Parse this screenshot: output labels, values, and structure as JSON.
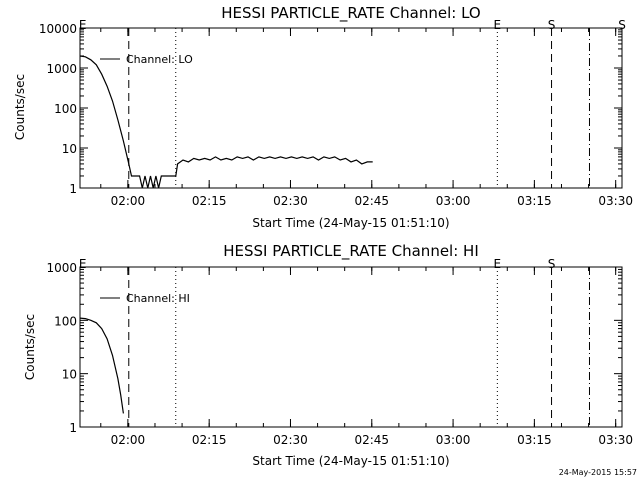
{
  "chart_data": [
    {
      "type": "line",
      "title": "HESSI PARTICLE_RATE Channel: LO",
      "xlabel": "Start Time (24-May-15 01:51:10)",
      "ylabel": "Counts/sec",
      "y_scale": "log",
      "ylim": [
        1,
        10000
      ],
      "xlim": [
        "01:51:10",
        "03:31:10"
      ],
      "x_tick_labels": [
        "02:00",
        "02:15",
        "02:30",
        "02:45",
        "03:00",
        "03:15",
        "03:30"
      ],
      "y_tick_labels": [
        "1",
        "10",
        "100",
        "1000",
        "10000"
      ],
      "legend": {
        "placement": "top-left",
        "entries": [
          "Channel: LO"
        ]
      },
      "grid": false,
      "event_markers": [
        {
          "time": "01:51:40",
          "label": "E",
          "style": "none"
        },
        {
          "time": "02:00:10",
          "label": "",
          "style": "dashed"
        },
        {
          "time": "02:08:50",
          "label": "",
          "style": "dotted"
        },
        {
          "time": "03:08:10",
          "label": "E",
          "style": "dotted"
        },
        {
          "time": "03:18:10",
          "label": "S",
          "style": "dashed"
        },
        {
          "time": "03:25:10",
          "label": "",
          "style": "dash-dot"
        },
        {
          "time": "03:31:10",
          "label": "S",
          "style": "none"
        }
      ],
      "series": [
        {
          "name": "Channel: LO",
          "points": [
            [
              "01:51:10",
              2000
            ],
            [
              "01:52:10",
              1900
            ],
            [
              "01:53:10",
              1600
            ],
            [
              "01:54:10",
              1200
            ],
            [
              "01:55:10",
              700
            ],
            [
              "01:56:10",
              350
            ],
            [
              "01:57:10",
              150
            ],
            [
              "01:58:10",
              50
            ],
            [
              "01:59:10",
              15
            ],
            [
              "02:00:10",
              4
            ],
            [
              "02:00:40",
              2
            ],
            [
              "02:01:10",
              2
            ],
            [
              "02:02:10",
              2
            ],
            [
              "02:02:40",
              1
            ],
            [
              "02:03:10",
              2
            ],
            [
              "02:03:40",
              1
            ],
            [
              "02:04:10",
              2
            ],
            [
              "02:04:40",
              1
            ],
            [
              "02:05:10",
              2
            ],
            [
              "02:05:40",
              1
            ],
            [
              "02:06:10",
              2
            ],
            [
              "02:07:10",
              2
            ],
            [
              "02:08:10",
              2
            ],
            [
              "02:08:50",
              2
            ],
            [
              "02:09:10",
              4
            ],
            [
              "02:10:10",
              5
            ],
            [
              "02:11:10",
              4.5
            ],
            [
              "02:12:10",
              5.5
            ],
            [
              "02:13:10",
              5
            ],
            [
              "02:14:10",
              5.5
            ],
            [
              "02:15:10",
              5
            ],
            [
              "02:16:10",
              6
            ],
            [
              "02:17:10",
              5
            ],
            [
              "02:18:10",
              5.5
            ],
            [
              "02:19:10",
              5
            ],
            [
              "02:20:10",
              6
            ],
            [
              "02:21:10",
              5.5
            ],
            [
              "02:22:10",
              6
            ],
            [
              "02:23:10",
              5
            ],
            [
              "02:24:10",
              6
            ],
            [
              "02:25:10",
              5.5
            ],
            [
              "02:26:10",
              6
            ],
            [
              "02:27:10",
              5.5
            ],
            [
              "02:28:10",
              6
            ],
            [
              "02:29:10",
              5.5
            ],
            [
              "02:30:10",
              6
            ],
            [
              "02:31:10",
              5.5
            ],
            [
              "02:32:10",
              6
            ],
            [
              "02:33:10",
              5.5
            ],
            [
              "02:34:10",
              6
            ],
            [
              "02:35:10",
              5
            ],
            [
              "02:36:10",
              6
            ],
            [
              "02:37:10",
              5.5
            ],
            [
              "02:38:10",
              6
            ],
            [
              "02:39:10",
              5
            ],
            [
              "02:40:10",
              5.5
            ],
            [
              "02:41:10",
              4.5
            ],
            [
              "02:42:10",
              5
            ],
            [
              "02:43:10",
              4
            ],
            [
              "02:44:10",
              4.5
            ],
            [
              "02:45:10",
              4.5
            ]
          ]
        }
      ]
    },
    {
      "type": "line",
      "title": "HESSI PARTICLE_RATE Channel: HI",
      "xlabel": "Start Time (24-May-15 01:51:10)",
      "ylabel": "Counts/sec",
      "y_scale": "log",
      "ylim": [
        1,
        1000
      ],
      "xlim": [
        "01:51:10",
        "03:31:10"
      ],
      "x_tick_labels": [
        "02:00",
        "02:15",
        "02:30",
        "02:45",
        "03:00",
        "03:15",
        "03:30"
      ],
      "y_tick_labels": [
        "1",
        "10",
        "100",
        "1000"
      ],
      "legend": {
        "placement": "top-left",
        "entries": [
          "Channel: HI"
        ]
      },
      "grid": false,
      "event_markers": [
        {
          "time": "01:51:40",
          "label": "E",
          "style": "none"
        },
        {
          "time": "02:00:10",
          "label": "",
          "style": "dashed"
        },
        {
          "time": "02:08:50",
          "label": "",
          "style": "dotted"
        },
        {
          "time": "03:08:10",
          "label": "E",
          "style": "dotted"
        },
        {
          "time": "03:18:10",
          "label": "S",
          "style": "dashed"
        },
        {
          "time": "03:25:10",
          "label": "",
          "style": "dash-dot"
        }
      ],
      "series": [
        {
          "name": "Channel: HI",
          "points": [
            [
              "01:51:10",
              110
            ],
            [
              "01:52:10",
              108
            ],
            [
              "01:53:10",
              100
            ],
            [
              "01:54:10",
              90
            ],
            [
              "01:55:10",
              70
            ],
            [
              "01:56:10",
              45
            ],
            [
              "01:57:10",
              22
            ],
            [
              "01:58:10",
              8
            ],
            [
              "01:58:40",
              4
            ],
            [
              "01:59:10",
              1.8
            ]
          ]
        }
      ]
    }
  ],
  "footer": {
    "timestamp": "24-May-2015 15:57"
  }
}
